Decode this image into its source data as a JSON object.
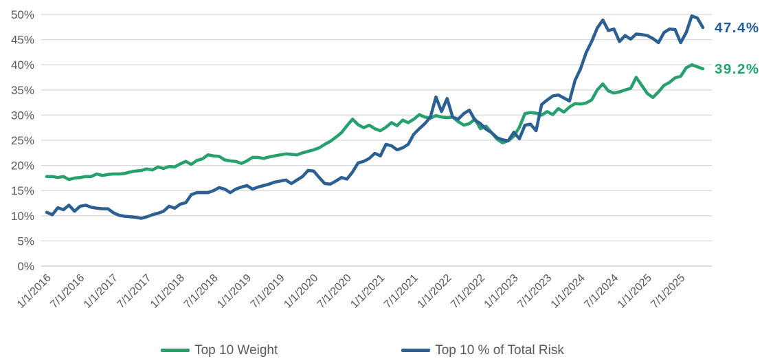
{
  "page": {
    "background": "#ffffff"
  },
  "colors": {
    "green_line": "#28a06e",
    "green_label": "#21a36c",
    "blue_line": "#2c5f92",
    "blue_label": "#1f5c98",
    "axis_text": "#595959",
    "gridline": "#d9d9d9",
    "axis_line": "#c6c6c6"
  },
  "chart_data": {
    "type": "line",
    "frequency": "monthly",
    "x_start": "1/1/2016",
    "x_end": "11/1/2025",
    "title": "",
    "xlabel": "",
    "ylabel": "",
    "ylim": [
      0,
      50
    ],
    "y_tick_step": 5,
    "y_tick_labels": [
      "0%",
      "5%",
      "10%",
      "15%",
      "20%",
      "25%",
      "30%",
      "35%",
      "40%",
      "45%",
      "50%"
    ],
    "x_tick_labels": [
      "1/1/2016",
      "7/1/2016",
      "1/1/2017",
      "7/1/2017",
      "1/1/2018",
      "7/1/2018",
      "1/1/2019",
      "7/1/2019",
      "1/1/2020",
      "7/1/2020",
      "1/1/2021",
      "7/1/2021",
      "1/1/2022",
      "7/1/2022",
      "1/1/2023",
      "7/1/2023",
      "1/1/2024",
      "7/1/2024",
      "1/1/2025",
      "7/1/2025"
    ],
    "x_tick_every_n_months": 6,
    "grid": "horizontal",
    "legend_position": "bottom",
    "series": [
      {
        "name": "Top 10 Weight",
        "color": "#28a06e",
        "label_color": "#21a36c",
        "end_label": "39.2%",
        "values": [
          17.8,
          17.8,
          17.6,
          17.8,
          17.2,
          17.5,
          17.6,
          17.8,
          17.8,
          18.3,
          18.0,
          18.2,
          18.3,
          18.3,
          18.4,
          18.7,
          18.9,
          19.0,
          19.3,
          19.1,
          19.7,
          19.4,
          19.8,
          19.7,
          20.3,
          20.8,
          20.2,
          21.0,
          21.3,
          22.1,
          21.9,
          21.8,
          21.1,
          20.9,
          20.8,
          20.4,
          20.9,
          21.6,
          21.6,
          21.4,
          21.7,
          21.9,
          22.1,
          22.3,
          22.2,
          22.1,
          22.5,
          22.8,
          23.1,
          23.5,
          24.2,
          24.8,
          25.6,
          26.5,
          27.9,
          29.2,
          28.1,
          27.5,
          28.0,
          27.3,
          26.9,
          27.6,
          28.5,
          27.9,
          29.0,
          28.5,
          29.2,
          30.1,
          29.6,
          29.4,
          29.9,
          29.6,
          29.5,
          29.6,
          28.7,
          28.0,
          28.3,
          29.2,
          27.3,
          27.8,
          26.5,
          25.2,
          24.5,
          24.9,
          25.8,
          27.6,
          30.3,
          30.5,
          30.4,
          30.0,
          30.7,
          30.1,
          31.3,
          30.6,
          31.6,
          32.3,
          32.2,
          32.4,
          33.0,
          35.0,
          36.2,
          34.8,
          34.4,
          34.6,
          35.0,
          35.3,
          37.5,
          35.9,
          34.3,
          33.5,
          34.6,
          35.9,
          36.5,
          37.4,
          37.7,
          39.4,
          40.0,
          39.6,
          39.2
        ]
      },
      {
        "name": "Top 10 % of Total Risk",
        "color": "#2c5f92",
        "label_color": "#1f5c98",
        "end_label": "47.4%",
        "values": [
          10.7,
          10.2,
          11.6,
          11.2,
          12.1,
          10.9,
          11.9,
          12.1,
          11.7,
          11.5,
          11.4,
          11.4,
          10.6,
          10.1,
          9.9,
          9.8,
          9.7,
          9.5,
          9.8,
          10.2,
          10.5,
          10.9,
          11.9,
          11.5,
          12.3,
          12.6,
          14.2,
          14.6,
          14.6,
          14.6,
          15.0,
          15.6,
          15.3,
          14.6,
          15.3,
          15.7,
          16.0,
          15.3,
          15.7,
          16.0,
          16.3,
          16.7,
          16.9,
          17.1,
          16.4,
          17.1,
          17.8,
          19.0,
          18.9,
          17.6,
          16.4,
          16.3,
          16.9,
          17.6,
          17.3,
          18.7,
          20.5,
          20.8,
          21.4,
          22.4,
          21.9,
          24.2,
          23.9,
          23.1,
          23.5,
          24.2,
          26.2,
          27.3,
          28.3,
          29.6,
          33.6,
          30.7,
          33.3,
          29.6,
          29.2,
          30.3,
          31.0,
          29.0,
          28.3,
          27.2,
          26.5,
          25.5,
          25.1,
          24.9,
          26.6,
          25.3,
          28.0,
          28.2,
          26.9,
          32.1,
          33.0,
          33.8,
          34.0,
          33.4,
          32.8,
          36.9,
          39.2,
          42.4,
          44.6,
          47.3,
          48.9,
          46.8,
          47.1,
          44.6,
          45.8,
          45.1,
          46.1,
          46.0,
          45.8,
          45.2,
          44.4,
          46.4,
          47.1,
          47.0,
          44.4,
          46.4,
          49.7,
          49.3,
          47.4
        ]
      }
    ]
  }
}
